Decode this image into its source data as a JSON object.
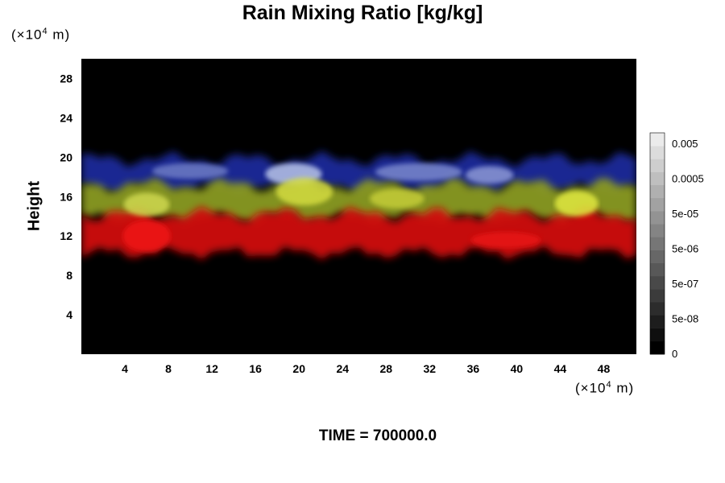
{
  "chart_data": {
    "type": "heatmap",
    "title": "Rain Mixing Ratio [kg/kg]",
    "ylabel": "Height",
    "x_unit": {
      "prefix": "(×10",
      "exp": "4",
      "suffix": " m)"
    },
    "y_unit": {
      "prefix": "(×10",
      "exp": "4",
      "suffix": " m)"
    },
    "xlim": [
      0,
      51
    ],
    "ylim": [
      0,
      30
    ],
    "x_ticks": [
      4,
      8,
      12,
      16,
      20,
      24,
      28,
      32,
      36,
      40,
      44,
      48
    ],
    "y_ticks": [
      4,
      8,
      12,
      16,
      20,
      24,
      28
    ],
    "layers": [
      {
        "color": "#1a2a9a",
        "y_range": [
          16.8,
          19.8
        ],
        "description_color": "blue"
      },
      {
        "color": "#8a9a20",
        "y_range": [
          13.8,
          17.2
        ],
        "description_color": "yellow-green"
      },
      {
        "color": "#d01010",
        "y_range": [
          10.3,
          14.2
        ],
        "description_color": "red"
      }
    ],
    "colorbar": {
      "labels": [
        "0.005",
        "0.0005",
        "5e-05",
        "5e-06",
        "5e-07",
        "5e-08",
        "0"
      ],
      "levels": 17
    },
    "footer": "TIME = 700000.0"
  }
}
